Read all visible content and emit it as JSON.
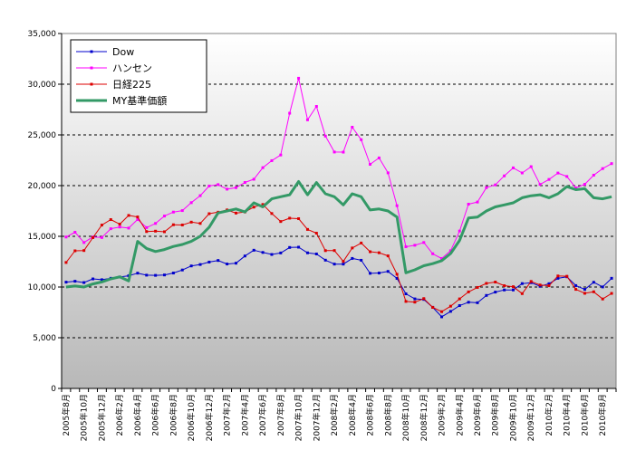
{
  "chart_data": {
    "type": "line",
    "title": "",
    "xlabel": "",
    "ylabel": "",
    "ylim": [
      0,
      35000
    ],
    "y_ticks": [
      "0",
      "5,000",
      "10,000",
      "15,000",
      "20,000",
      "25,000",
      "30,000",
      "35,000"
    ],
    "y_tick_values": [
      0,
      5000,
      10000,
      15000,
      20000,
      25000,
      30000,
      35000
    ],
    "grid": "horizontal dashed",
    "legend_position": "top-left",
    "plot_background": "gradient light gray",
    "x": [
      "2005年8月",
      "2005年9月",
      "2005年10月",
      "2005年11月",
      "2005年12月",
      "2006年1月",
      "2006年2月",
      "2006年3月",
      "2006年4月",
      "2006年5月",
      "2006年6月",
      "2006年7月",
      "2006年8月",
      "2006年9月",
      "2006年10月",
      "2006年11月",
      "2006年12月",
      "2007年1月",
      "2007年2月",
      "2007年3月",
      "2007年4月",
      "2007年5月",
      "2007年6月",
      "2007年7月",
      "2007年8月",
      "2007年9月",
      "2007年10月",
      "2007年11月",
      "2007年12月",
      "2008年1月",
      "2008年2月",
      "2008年3月",
      "2008年4月",
      "2008年5月",
      "2008年6月",
      "2008年7月",
      "2008年8月",
      "2008年9月",
      "2008年10月",
      "2008年11月",
      "2008年12月",
      "2009年1月",
      "2009年2月",
      "2009年3月",
      "2009年4月",
      "2009年5月",
      "2009年6月",
      "2009年7月",
      "2009年8月",
      "2009年9月",
      "2009年10月",
      "2009年11月",
      "2009年12月",
      "2010年1月",
      "2010年2月",
      "2010年3月",
      "2010年4月",
      "2010年5月",
      "2010年6月",
      "2010年7月",
      "2010年8月",
      "2010年9月"
    ],
    "x_tick_labels": [
      "2005年8月",
      "2005年10月",
      "2005年12月",
      "2006年2月",
      "2006年4月",
      "2006年6月",
      "2006年8月",
      "2006年10月",
      "2006年12月",
      "2007年2月",
      "2007年4月",
      "2007年6月",
      "2007年8月",
      "2007年10月",
      "2007年12月",
      "2008年2月",
      "2008年4月",
      "2008年6月",
      "2008年8月",
      "2008年10月",
      "2008年12月",
      "2009年2月",
      "2009年4月",
      "2009年6月",
      "2009年8月",
      "2009年10月",
      "2009年12月",
      "2010年2月",
      "2010年4月",
      "2010年6月",
      "2010年8月"
    ],
    "series": [
      {
        "name": "Dow",
        "color": "#0000cc",
        "marker": "dot",
        "width": 1,
        "values": [
          10480,
          10570,
          10440,
          10800,
          10720,
          10860,
          10990,
          11110,
          11370,
          11170,
          11150,
          11190,
          11380,
          11680,
          12080,
          12220,
          12460,
          12620,
          12270,
          12350,
          13060,
          13630,
          13410,
          13210,
          13360,
          13900,
          13930,
          13370,
          13260,
          12650,
          12260,
          12260,
          12820,
          12640,
          11350,
          11380,
          11540,
          10850,
          9330,
          8830,
          8780,
          8000,
          7060,
          7600,
          8170,
          8500,
          8450,
          9170,
          9500,
          9710,
          9710,
          10340,
          10430,
          10070,
          10330,
          10860,
          11010,
          10140,
          9770,
          10470,
          10010,
          10860
        ]
      },
      {
        "name": "ハンセン",
        "color": "#ff00ff",
        "marker": "dot",
        "width": 1,
        "values": [
          14930,
          15400,
          14390,
          14940,
          14880,
          15750,
          15920,
          15810,
          16660,
          15860,
          16270,
          17000,
          17390,
          17540,
          18320,
          19010,
          19960,
          20100,
          19650,
          19800,
          20310,
          20630,
          21770,
          22460,
          23020,
          27140,
          30590,
          26490,
          27810,
          24880,
          23310,
          23300,
          25760,
          24530,
          22100,
          22730,
          21260,
          18020,
          13970,
          14120,
          14390,
          13280,
          12810,
          13580,
          15520,
          18170,
          18380,
          19800,
          20070,
          20960,
          21750,
          21250,
          21870,
          20120,
          20610,
          21240,
          20900,
          19770,
          20130,
          21030,
          21680,
          22170
        ]
      },
      {
        "name": "日経225",
        "color": "#dd0000",
        "marker": "dot",
        "width": 1,
        "values": [
          12420,
          13570,
          13600,
          14870,
          16110,
          16650,
          16200,
          17060,
          16910,
          15470,
          15510,
          15450,
          16140,
          16120,
          16400,
          16270,
          17230,
          17380,
          17600,
          17290,
          17400,
          17880,
          18140,
          17250,
          16460,
          16790,
          16740,
          15680,
          15310,
          13590,
          13600,
          12530,
          13850,
          14340,
          13480,
          13380,
          13070,
          11260,
          8580,
          8510,
          8860,
          7990,
          7570,
          8110,
          8830,
          9520,
          9960,
          10360,
          10490,
          10130,
          10030,
          9350,
          10550,
          10200,
          10130,
          11090,
          11060,
          9770,
          9380,
          9530,
          8820,
          9370
        ]
      },
      {
        "name": "MY基準価額",
        "color": "#339966",
        "marker": "none",
        "width": 3,
        "values": [
          10000,
          10100,
          10000,
          10300,
          10500,
          10800,
          11000,
          10600,
          14500,
          13800,
          13500,
          13700,
          14000,
          14200,
          14500,
          15000,
          15900,
          17300,
          17500,
          17700,
          17400,
          18300,
          17900,
          18700,
          18900,
          19100,
          20400,
          19100,
          20300,
          19200,
          18900,
          18100,
          19200,
          18900,
          17600,
          17700,
          17500,
          16900,
          11400,
          11700,
          12100,
          12300,
          12600,
          13300,
          14600,
          16800,
          16900,
          17500,
          17900,
          18100,
          18300,
          18800,
          19000,
          19100,
          18800,
          19200,
          19900,
          19600,
          19700,
          18800,
          18700,
          18900
        ]
      }
    ]
  }
}
